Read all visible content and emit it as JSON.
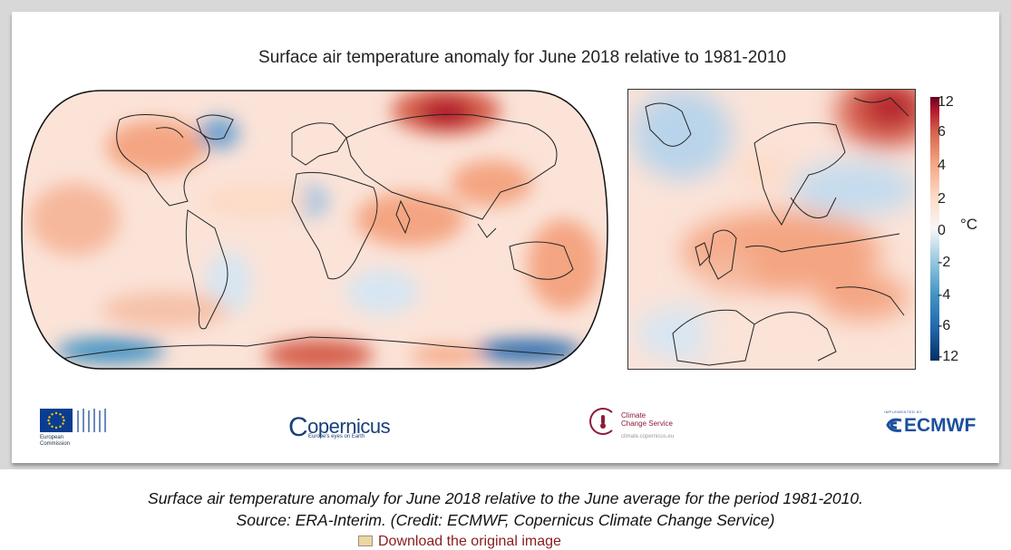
{
  "map": {
    "title": "Surface air temperature anomaly for June 2018 relative to 1981-2010",
    "colorbar": {
      "unit": "°C",
      "ticks": [
        "12",
        "6",
        "4",
        "2",
        "0",
        "-2",
        "-4",
        "-6",
        "-12"
      ],
      "colors": [
        "#053061",
        "#2166ac",
        "#4393c3",
        "#92c5de",
        "#f7f7f7",
        "#fddbc7",
        "#f4a582",
        "#d6604d",
        "#b2182b",
        "#67001f"
      ]
    }
  },
  "logos": {
    "eu": {
      "name": "European Commission",
      "line1": "European",
      "line2": "Commission"
    },
    "copernicus": {
      "name": "opernicus",
      "tagline": "Europe's eyes on Earth"
    },
    "c3s": {
      "line1": "Climate",
      "line2": "Change Service",
      "url": "climate.copernicus.eu"
    },
    "ecmwf": {
      "implemented_by": "IMPLEMENTED BY",
      "name": "ECMWF"
    }
  },
  "caption": {
    "line1": "Surface air temperature anomaly for June 2018 relative to the June average for the period 1981-2010.",
    "line2": "Source: ERA-Interim. (Credit: ECMWF, Copernicus Climate Change Service)"
  },
  "download_link": "Download the original image"
}
